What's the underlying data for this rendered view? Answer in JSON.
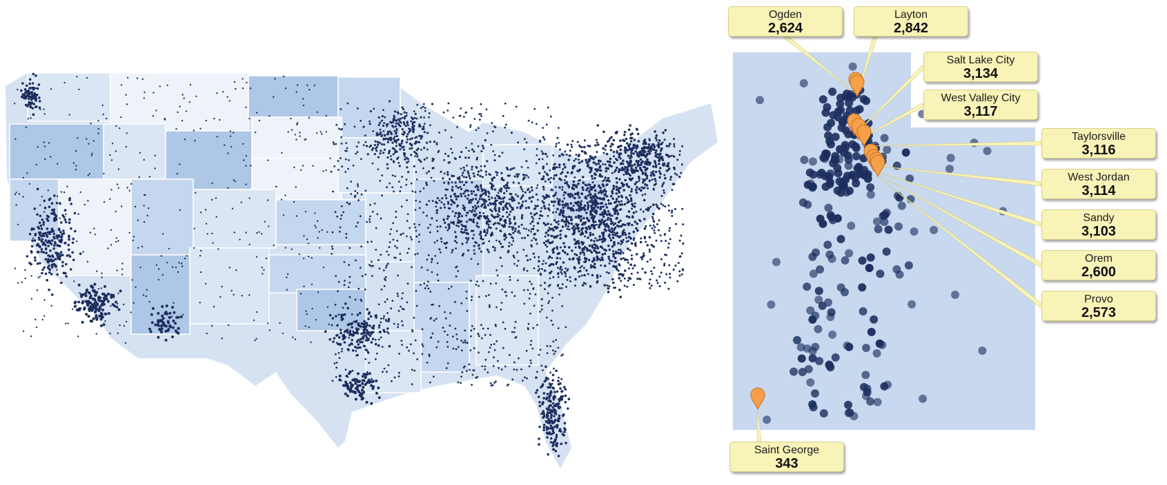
{
  "colors": {
    "dot": "#1c2f5e",
    "state_fills": [
      "#eef3fa",
      "#dbe6f4",
      "#c5d7ee",
      "#aec7e6"
    ],
    "utah_fill": "#c7d8ef",
    "pin": "#f6a04a",
    "callout_bg": "#f8f3b7"
  },
  "icons": {
    "marker": "map-pin-icon"
  },
  "cities": [
    {
      "id": "ogden",
      "name": "Ogden",
      "value": "2,624"
    },
    {
      "id": "layton",
      "name": "Layton",
      "value": "2,842"
    },
    {
      "id": "salt-lake-city",
      "name": "Salt Lake City",
      "value": "3,134"
    },
    {
      "id": "west-valley-city",
      "name": "West Valley City",
      "value": "3,117"
    },
    {
      "id": "taylorsville",
      "name": "Taylorsville",
      "value": "3,116"
    },
    {
      "id": "west-jordan",
      "name": "West Jordan",
      "value": "3,114"
    },
    {
      "id": "sandy",
      "name": "Sandy",
      "value": "3,103"
    },
    {
      "id": "orem",
      "name": "Orem",
      "value": "2,600"
    },
    {
      "id": "provo",
      "name": "Provo",
      "value": "2,573"
    },
    {
      "id": "saint-george",
      "name": "Saint George",
      "value": "343"
    }
  ]
}
